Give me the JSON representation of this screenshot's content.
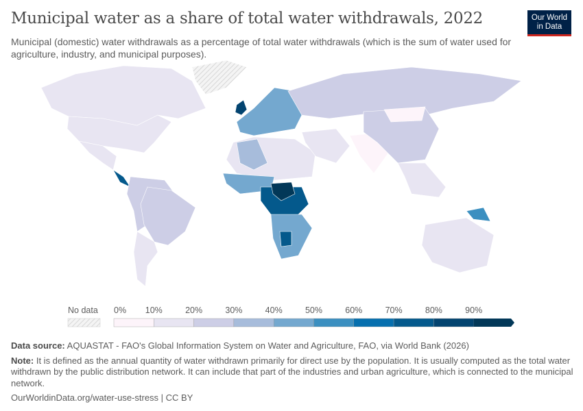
{
  "header": {
    "title": "Municipal water as a share of total water withdrawals, 2022",
    "subtitle": "Municipal (domestic) water withdrawals as a percentage of total water withdrawals (which is the sum of water used for agriculture, industry, and municipal purposes).",
    "logo_text": "Our World in Data"
  },
  "chart_data": {
    "type": "choropleth-map",
    "year": "2022",
    "legend": {
      "no_data_label": "No data",
      "bins": [
        "0%",
        "10%",
        "20%",
        "30%",
        "40%",
        "50%",
        "60%",
        "70%",
        "80%",
        "90%"
      ],
      "colors": [
        "#fdf4fa",
        "#e8e5f2",
        "#cdcee6",
        "#a7bcdb",
        "#74a8cf",
        "#3b8fc0",
        "#066fae",
        "#04598c",
        "#034470",
        "#023858"
      ],
      "no_data_color": "#e8e8e8"
    },
    "regions": [
      {
        "name": "Canada",
        "bin": 1
      },
      {
        "name": "United States",
        "bin": 1
      },
      {
        "name": "Mexico",
        "bin": 1
      },
      {
        "name": "Central America",
        "bin": 7
      },
      {
        "name": "South America",
        "bin": 2
      },
      {
        "name": "Brazil",
        "bin": 2
      },
      {
        "name": "Argentina",
        "bin": 1
      },
      {
        "name": "Greenland",
        "bin": -1
      },
      {
        "name": "Europe",
        "bin": 4
      },
      {
        "name": "United Kingdom",
        "bin": 8
      },
      {
        "name": "Russia",
        "bin": 2
      },
      {
        "name": "North Africa",
        "bin": 1
      },
      {
        "name": "Algeria",
        "bin": 3
      },
      {
        "name": "West Africa",
        "bin": 4
      },
      {
        "name": "Central Africa",
        "bin": 7
      },
      {
        "name": "Congo Basin",
        "bin": 9
      },
      {
        "name": "Southern Africa",
        "bin": 4
      },
      {
        "name": "Botswana",
        "bin": 7
      },
      {
        "name": "Middle East",
        "bin": 1
      },
      {
        "name": "India",
        "bin": 0
      },
      {
        "name": "China",
        "bin": 2
      },
      {
        "name": "Mongolia",
        "bin": 0
      },
      {
        "name": "Southeast Asia",
        "bin": 1
      },
      {
        "name": "Papua New Guinea",
        "bin": 5
      },
      {
        "name": "Australia",
        "bin": 1
      }
    ]
  },
  "footer": {
    "source_label": "Data source:",
    "source_text": "AQUASTAT - FAO's Global Information System on Water and Agriculture, FAO, via World Bank (2026)",
    "note_label": "Note:",
    "note_text": "It is defined as the annual quantity of water withdrawn primarily for direct use by the population. It is usually computed as the total water withdrawn by the public distribution network. It can include that part of the industries and urban agriculture, which is connected to the municipal network.",
    "url": "OurWorldinData.org/water-use-stress | CC BY"
  }
}
